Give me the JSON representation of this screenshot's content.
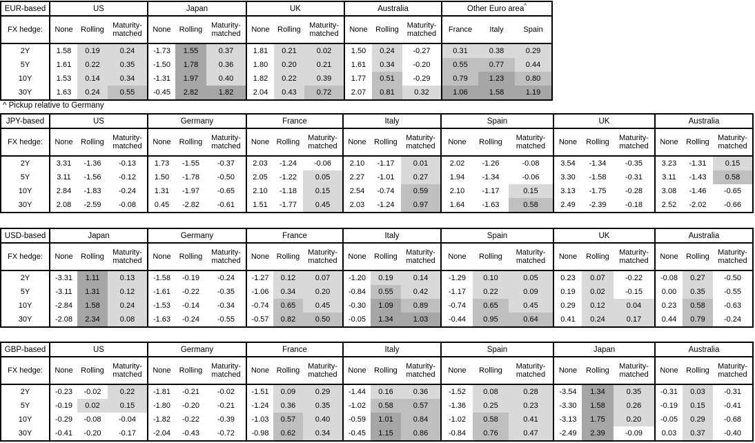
{
  "shading": {
    "light": "#d9d9d9",
    "medium": "#bfbfbf",
    "dark": "#a6a6a6",
    "thresholds": [
      0.5,
      1.0
    ]
  },
  "footnote": "^ Pickup relative to Germany",
  "tables": [
    {
      "base_label": "EUR-based",
      "fx_hedge_label": "FX hedge:",
      "hedge_columns": [
        "None",
        "Rolling",
        "Maturity-matched"
      ],
      "tenors": [
        "2Y",
        "5Y",
        "10Y",
        "30Y"
      ],
      "groups": [
        {
          "name": "US",
          "type": "hedge",
          "values": [
            [
              "1.58",
              "0.19",
              "0.24"
            ],
            [
              "1.61",
              "0.22",
              "0.35"
            ],
            [
              "1.53",
              "0.14",
              "0.34"
            ],
            [
              "1.63",
              "0.24",
              "0.55"
            ]
          ]
        },
        {
          "name": "Japan",
          "type": "hedge",
          "values": [
            [
              "-1.73",
              "1.55",
              "0.37"
            ],
            [
              "-1.50",
              "1.78",
              "0.36"
            ],
            [
              "-1.31",
              "1.97",
              "0.40"
            ],
            [
              "-0.45",
              "2.82",
              "1.82"
            ]
          ]
        },
        {
          "name": "UK",
          "type": "hedge",
          "values": [
            [
              "1.81",
              "0.21",
              "0.02"
            ],
            [
              "1.80",
              "0.20",
              "0.21"
            ],
            [
              "1.82",
              "0.22",
              "0.39"
            ],
            [
              "2.04",
              "0.43",
              "0.72"
            ]
          ]
        },
        {
          "name": "Australia",
          "type": "hedge",
          "values": [
            [
              "1.50",
              "0.24",
              "-0.27"
            ],
            [
              "1.61",
              "0.34",
              "-0.20"
            ],
            [
              "1.77",
              "0.51",
              "-0.29"
            ],
            [
              "2.07",
              "0.81",
              "0.32"
            ]
          ]
        },
        {
          "name": "Other Euro area",
          "footnote_marker": "^",
          "type": "pickup",
          "columns": [
            "France",
            "Italy",
            "Spain"
          ],
          "values": [
            [
              "0.31",
              "0.38",
              "0.29"
            ],
            [
              "0.55",
              "0.77",
              "0.44"
            ],
            [
              "0.79",
              "1.23",
              "0.80"
            ],
            [
              "1.06",
              "1.58",
              "1.19"
            ]
          ]
        }
      ]
    },
    {
      "base_label": "JPY-based",
      "fx_hedge_label": "FX hedge:",
      "hedge_columns": [
        "None",
        "Rolling",
        "Maturity-matched"
      ],
      "tenors": [
        "2Y",
        "5Y",
        "10Y",
        "30Y"
      ],
      "groups": [
        {
          "name": "US",
          "type": "hedge",
          "values": [
            [
              "3.31",
              "-1.36",
              "-0.13"
            ],
            [
              "3.11",
              "-1.56",
              "-0.12"
            ],
            [
              "2.84",
              "-1.83",
              "-0.24"
            ],
            [
              "2.08",
              "-2.59",
              "-0.08"
            ]
          ]
        },
        {
          "name": "Germany",
          "type": "hedge",
          "values": [
            [
              "1.73",
              "-1.55",
              "-0.37"
            ],
            [
              "1.50",
              "-1.78",
              "-0.50"
            ],
            [
              "1.31",
              "-1.97",
              "-0.65"
            ],
            [
              "0.45",
              "-2.82",
              "-0.61"
            ]
          ]
        },
        {
          "name": "France",
          "type": "hedge",
          "values": [
            [
              "2.03",
              "-1.24",
              "-0.06"
            ],
            [
              "2.05",
              "-1.22",
              "0.05"
            ],
            [
              "2.10",
              "-1.18",
              "0.15"
            ],
            [
              "1.51",
              "-1.77",
              "0.45"
            ]
          ]
        },
        {
          "name": "Italy",
          "type": "hedge",
          "values": [
            [
              "2.10",
              "-1.17",
              "0.01"
            ],
            [
              "2.27",
              "-1.01",
              "0.27"
            ],
            [
              "2.54",
              "-0.74",
              "0.59"
            ],
            [
              "2.03",
              "-1.24",
              "0.97"
            ]
          ]
        },
        {
          "name": "Spain",
          "type": "hedge",
          "values": [
            [
              "2.02",
              "-1.26",
              "-0.08"
            ],
            [
              "1.94",
              "-1.34",
              "-0.06"
            ],
            [
              "2.10",
              "-1.17",
              "0.15"
            ],
            [
              "1.64",
              "-1.63",
              "0.58"
            ]
          ]
        },
        {
          "name": "UK",
          "type": "hedge",
          "values": [
            [
              "3.54",
              "-1.34",
              "-0.35"
            ],
            [
              "3.30",
              "-1.58",
              "-0.31"
            ],
            [
              "3.13",
              "-1.75",
              "-0.28"
            ],
            [
              "2.49",
              "-2.39",
              "-0.18"
            ]
          ]
        },
        {
          "name": "Australia",
          "type": "hedge",
          "values": [
            [
              "3.23",
              "-1.31",
              "0.15"
            ],
            [
              "3.11",
              "-1.43",
              "0.58"
            ],
            [
              "3.08",
              "-1.46",
              "-0.65"
            ],
            [
              "2.52",
              "-2.02",
              "-0.66"
            ]
          ]
        }
      ]
    },
    {
      "base_label": "USD-based",
      "fx_hedge_label": "FX hedge:",
      "hedge_columns": [
        "None",
        "Rolling",
        "Maturity-matched"
      ],
      "tenors": [
        "2Y",
        "5Y",
        "10Y",
        "30Y"
      ],
      "groups": [
        {
          "name": "Japan",
          "type": "hedge",
          "values": [
            [
              "-3.31",
              "1.11",
              "0.13"
            ],
            [
              "-3.11",
              "1.31",
              "0.12"
            ],
            [
              "-2.84",
              "1.58",
              "0.24"
            ],
            [
              "-2.08",
              "2.34",
              "0.08"
            ]
          ]
        },
        {
          "name": "Germany",
          "type": "hedge",
          "values": [
            [
              "-1.58",
              "-0.19",
              "-0.24"
            ],
            [
              "-1.61",
              "-0.22",
              "-0.35"
            ],
            [
              "-1.53",
              "-0.14",
              "-0.34"
            ],
            [
              "-1.63",
              "-0.24",
              "-0.55"
            ]
          ]
        },
        {
          "name": "France",
          "type": "hedge",
          "values": [
            [
              "-1.27",
              "0.12",
              "0.07"
            ],
            [
              "-1.06",
              "0.34",
              "0.20"
            ],
            [
              "-0.74",
              "0.65",
              "0.45"
            ],
            [
              "-0.57",
              "0.82",
              "0.50"
            ]
          ]
        },
        {
          "name": "Italy",
          "type": "hedge",
          "values": [
            [
              "-1.20",
              "0.19",
              "0.14"
            ],
            [
              "-0.84",
              "0.55",
              "0.42"
            ],
            [
              "-0.30",
              "1.09",
              "0.89"
            ],
            [
              "-0.05",
              "1.34",
              "1.03"
            ]
          ]
        },
        {
          "name": "Spain",
          "type": "hedge",
          "values": [
            [
              "-1.29",
              "0.10",
              "0.05"
            ],
            [
              "-1.17",
              "0.22",
              "0.09"
            ],
            [
              "-0.74",
              "0.65",
              "0.45"
            ],
            [
              "-0.44",
              "0.95",
              "0.64"
            ]
          ]
        },
        {
          "name": "UK",
          "type": "hedge",
          "values": [
            [
              "0.23",
              "0.07",
              "-0.22"
            ],
            [
              "0.19",
              "0.02",
              "-0.15"
            ],
            [
              "0.29",
              "0.12",
              "0.04"
            ],
            [
              "0.41",
              "0.24",
              "0.17"
            ]
          ]
        },
        {
          "name": "Australia",
          "type": "hedge",
          "values": [
            [
              "-0.08",
              "0.27",
              "-0.50"
            ],
            [
              "0.00",
              "0.35",
              "-0.55"
            ],
            [
              "0.23",
              "0.58",
              "-0.63"
            ],
            [
              "0.44",
              "0.79",
              "-0.24"
            ]
          ]
        }
      ]
    },
    {
      "base_label": "GBP-based",
      "fx_hedge_label": "FX hedge:",
      "hedge_columns": [
        "None",
        "Rolling",
        "Maturity-matched"
      ],
      "tenors": [
        "2Y",
        "5Y",
        "10Y",
        "30Y"
      ],
      "groups": [
        {
          "name": "US",
          "type": "hedge",
          "values": [
            [
              "-0.23",
              "-0.02",
              "0.22"
            ],
            [
              "-0.19",
              "0.02",
              "0.15"
            ],
            [
              "-0.29",
              "-0.08",
              "-0.04"
            ],
            [
              "-0.41",
              "-0.20",
              "-0.17"
            ]
          ]
        },
        {
          "name": "Germany",
          "type": "hedge",
          "values": [
            [
              "-1.81",
              "-0.21",
              "-0.02"
            ],
            [
              "-1.80",
              "-0.20",
              "-0.21"
            ],
            [
              "-1.82",
              "-0.22",
              "-0.39"
            ],
            [
              "-2.04",
              "-0.43",
              "-0.72"
            ]
          ]
        },
        {
          "name": "France",
          "type": "hedge",
          "values": [
            [
              "-1.51",
              "0.09",
              "0.29"
            ],
            [
              "-1.24",
              "0.36",
              "0.35"
            ],
            [
              "-1.03",
              "0.57",
              "0.40"
            ],
            [
              "-0.98",
              "0.62",
              "0.34"
            ]
          ]
        },
        {
          "name": "Italy",
          "type": "hedge",
          "values": [
            [
              "-1.44",
              "0.16",
              "0.36"
            ],
            [
              "-1.02",
              "0.58",
              "0.57"
            ],
            [
              "-0.59",
              "1.01",
              "0.84"
            ],
            [
              "-0.45",
              "1.15",
              "0.86"
            ]
          ]
        },
        {
          "name": "Spain",
          "type": "hedge",
          "values": [
            [
              "-1.52",
              "0.08",
              "0.28"
            ],
            [
              "-1.36",
              "0.25",
              "0.23"
            ],
            [
              "-1.02",
              "0.58",
              "0.41"
            ],
            [
              "-0.84",
              "0.76",
              "0.47"
            ]
          ]
        },
        {
          "name": "Japan",
          "type": "hedge",
          "values": [
            [
              "-3.54",
              "1.34",
              "0.35"
            ],
            [
              "-3.30",
              "1.58",
              "0.26"
            ],
            [
              "-3.13",
              "1.75",
              "0.20"
            ],
            [
              "-2.49",
              "2.39",
              "-0.09"
            ]
          ]
        },
        {
          "name": "Australia",
          "type": "hedge",
          "values": [
            [
              "-0.31",
              "0.03",
              "-0.31"
            ],
            [
              "-0.19",
              "0.15",
              "-0.41"
            ],
            [
              "-0.05",
              "0.29",
              "-0.68"
            ],
            [
              "0.03",
              "0.37",
              "-0.40"
            ]
          ]
        }
      ]
    }
  ]
}
